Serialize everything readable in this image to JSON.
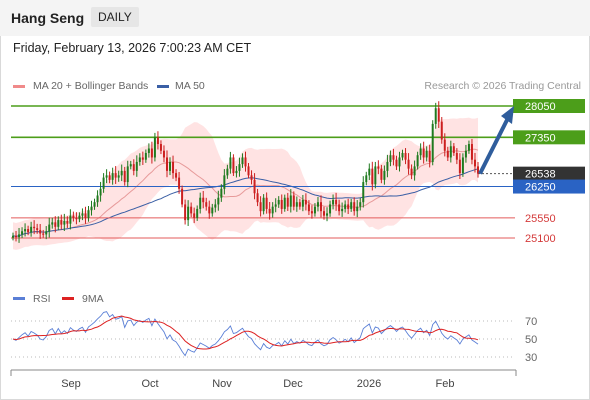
{
  "header": {
    "symbol": "Hang Seng",
    "timeframe": "DAILY"
  },
  "timestamp": "Friday, February 13, 2026 7:00:23 AM CET",
  "credit": "Research © 2026 Trading Central",
  "colors": {
    "up": "#1f7a1f",
    "down": "#cc1f1f",
    "band": "#ffd9d9",
    "ma50": "#3a5fa5",
    "resistance": "#4c9e1a",
    "support": "#e35b5b",
    "pivot": "#2a63c4",
    "arrow": "#2f5d9c",
    "rsi": "#5a7fd6",
    "rsi_ma": "#dd2222"
  },
  "chart_data": [
    {
      "type": "candlestick",
      "legend": [
        "MA 20 + Bollinger Bands",
        "MA 50"
      ],
      "x_ticks": [
        "Sep",
        "Oct",
        "Nov",
        "Dec",
        "2026",
        "Feb"
      ],
      "levels": [
        {
          "value": 28050,
          "label": "28050",
          "kind": "resistance"
        },
        {
          "value": 27350,
          "label": "27350",
          "kind": "resistance"
        },
        {
          "value": 26538,
          "label": "26538",
          "kind": "last"
        },
        {
          "value": 26250,
          "label": "26250",
          "kind": "pivot"
        },
        {
          "value": 25550,
          "label": "25550",
          "kind": "support"
        },
        {
          "value": 25100,
          "label": "25100",
          "kind": "support"
        }
      ],
      "closes": [
        25150,
        25120,
        25180,
        25250,
        25300,
        25230,
        25350,
        25320,
        25280,
        25200,
        25180,
        25250,
        25400,
        25450,
        25350,
        25500,
        25400,
        25480,
        25420,
        25600,
        25550,
        25520,
        25600,
        25650,
        25550,
        25720,
        25800,
        25900,
        26050,
        26200,
        26450,
        26500,
        26400,
        26550,
        26450,
        26500,
        26600,
        26350,
        26700,
        26750,
        26600,
        26800,
        26900,
        26850,
        27000,
        27100,
        26900,
        27350,
        27200,
        27050,
        26900,
        26600,
        26800,
        26550,
        26450,
        26200,
        25850,
        25500,
        25800,
        25650,
        25550,
        25750,
        26000,
        25900,
        25800,
        25650,
        25780,
        25850,
        26000,
        26200,
        26500,
        26650,
        26900,
        26550,
        26600,
        26750,
        26900,
        26700,
        26500,
        26400,
        26100,
        25900,
        25700,
        26000,
        25750,
        25650,
        25800,
        25850,
        25950,
        25750,
        26000,
        25800,
        26050,
        25800,
        25900,
        25800,
        25950,
        25850,
        25700,
        25650,
        25800,
        25900,
        25700,
        25600,
        25650,
        25850,
        25950,
        25850,
        25700,
        25750,
        25850,
        25750,
        25900,
        25700,
        25800,
        25900,
        26350,
        26500,
        26650,
        26300,
        26700,
        26650,
        26400,
        26600,
        26800,
        26950,
        26850,
        26700,
        26900,
        27000,
        26850,
        26650,
        26500,
        26700,
        26950,
        27100,
        26900,
        27050,
        26800,
        27650,
        28000,
        27700,
        27300,
        27050,
        26900,
        27150,
        27000,
        26850,
        26550,
        26900,
        27050,
        27200,
        26850,
        26700,
        26538
      ],
      "prediction": {
        "from": 26538,
        "to": 28050
      }
    },
    {
      "type": "line",
      "legend": [
        "RSI",
        "9MA"
      ],
      "ylim": [
        30,
        70
      ],
      "y_ticks": [
        "70",
        "50",
        "30"
      ]
    }
  ]
}
